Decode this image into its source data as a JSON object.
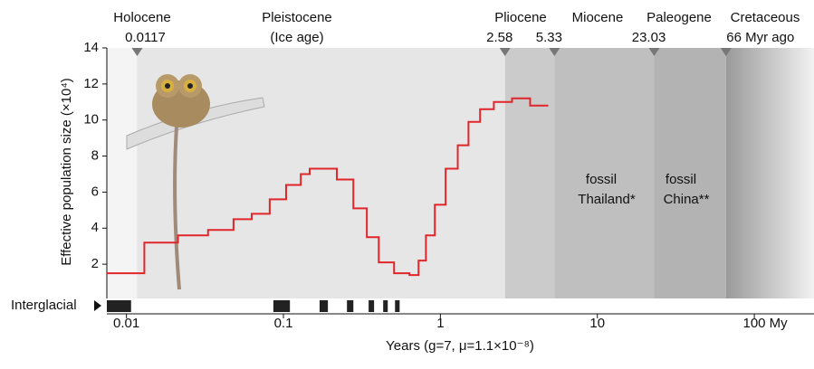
{
  "chart_data": {
    "type": "line",
    "step": true,
    "y_label": "Effective population size (×10⁴)",
    "x_label": "Years (g=7, μ=1.1×10⁻⁸)",
    "log_x": true,
    "xlim": [
      0.0075,
      240
    ],
    "ylim": [
      0.1,
      14
    ],
    "xticks": [
      0.01,
      0.1,
      1,
      10,
      {
        "value": 100,
        "label": "100 My"
      }
    ],
    "yticks": [
      2,
      4,
      6,
      8,
      10,
      12,
      14
    ],
    "series": [
      {
        "color": "#e0262b",
        "x": [
          0.0075,
          0.013,
          0.0213,
          0.0331,
          0.0481,
          0.0628,
          0.0818,
          0.104,
          0.129,
          0.147,
          0.219,
          0.279,
          0.34,
          0.405,
          0.507,
          0.635,
          0.726,
          0.809,
          0.922,
          1.08,
          1.29,
          1.51,
          1.79,
          2.19,
          2.86,
          3.73,
          4.87
        ],
        "values": [
          1.5,
          3.2,
          3.6,
          3.9,
          4.5,
          4.8,
          5.6,
          6.4,
          7.0,
          7.3,
          6.7,
          5.1,
          3.5,
          2.1,
          1.5,
          1.4,
          2.2,
          3.6,
          5.3,
          7.3,
          8.6,
          9.9,
          10.6,
          11.0,
          11.2,
          10.8,
          10.8
        ]
      }
    ],
    "epochs": [
      {
        "name": "Holocene"
      },
      {
        "name": "Pleistocene",
        "note": "(Ice age)"
      },
      {
        "name": "Pliocene"
      },
      {
        "name": "Miocene"
      },
      {
        "name": "Paleogene"
      },
      {
        "name": "Cretaceous"
      }
    ],
    "boundaries": [
      0.0117,
      2.58,
      5.33,
      23.03,
      {
        "value": 66,
        "label": "66 Myr ago"
      }
    ],
    "band_colors": [
      "#f4f4f4",
      "#e6e6e6",
      "#cbcbcb",
      "#bfbfbf",
      "#b3b3b3",
      "#9a9a9a"
    ],
    "annotations": [
      {
        "lines": [
          "fossil",
          "Thailand*"
        ]
      },
      {
        "lines": [
          "fossil",
          "China**"
        ]
      }
    ],
    "interglacial_label": "Interglacial",
    "interglacial": [
      [
        0.0075,
        0.0107
      ],
      [
        0.0863,
        0.11
      ],
      [
        0.17,
        0.192
      ],
      [
        0.254,
        0.279
      ],
      [
        0.349,
        0.378
      ],
      [
        0.432,
        0.462
      ],
      [
        0.514,
        0.55
      ]
    ]
  }
}
